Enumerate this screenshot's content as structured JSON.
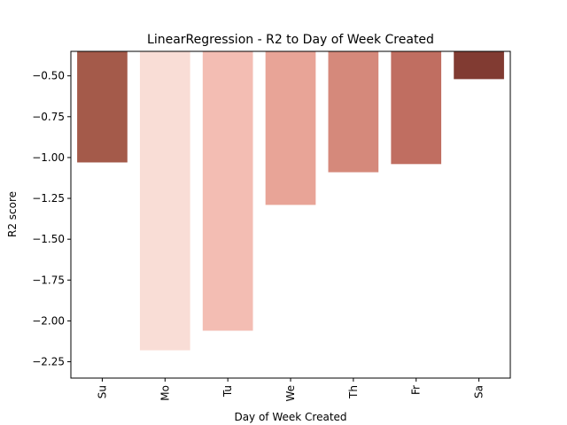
{
  "chart_data": {
    "type": "bar",
    "title": "LinearRegression - R2 to Day of Week Created",
    "xlabel": "Day of Week Created",
    "ylabel": "R2 score",
    "categories": [
      "Su",
      "Mo",
      "Tu",
      "We",
      "Th",
      "Fr",
      "Sa"
    ],
    "values": [
      -1.03,
      -2.18,
      -2.06,
      -1.29,
      -1.09,
      -1.04,
      -0.52
    ],
    "baseline": -0.35,
    "ylim": [
      -2.35,
      -0.35
    ],
    "yticks": [
      -0.5,
      -0.75,
      -1.0,
      -1.25,
      -1.5,
      -1.75,
      -2.0,
      -2.25
    ],
    "ytick_labels": [
      "−0.50",
      "−0.75",
      "−1.00",
      "−1.25",
      "−1.50",
      "−1.75",
      "−2.00",
      "−2.25"
    ],
    "bar_colors": [
      "#a45a4a",
      "#f9ddd6",
      "#f3bdb3",
      "#e8a497",
      "#d5897b",
      "#c06e61",
      "#813b32"
    ],
    "grid": false,
    "legend": "none"
  }
}
